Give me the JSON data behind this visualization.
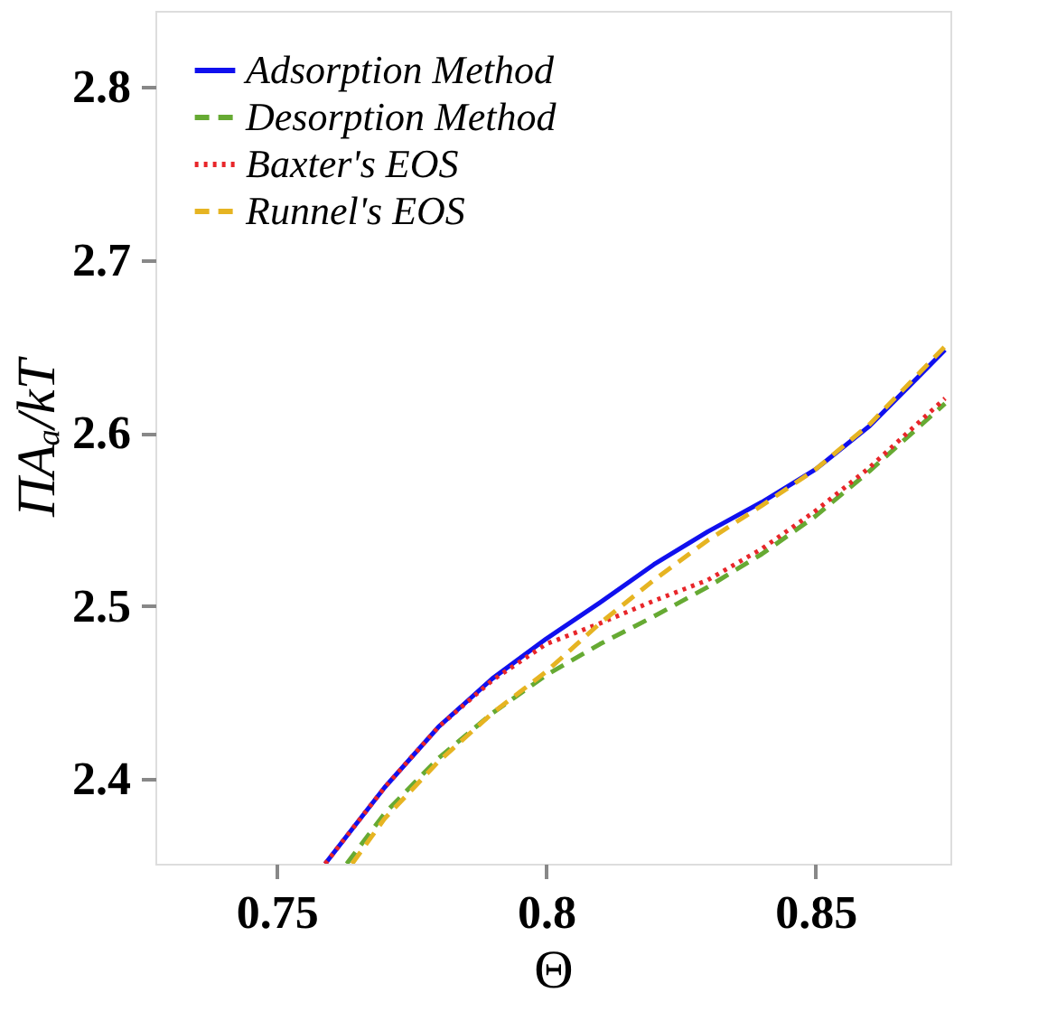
{
  "chart_data": {
    "type": "line",
    "xlabel": "Θ",
    "ylabel": "ΠAₐ/kT",
    "xlim": [
      0.7275,
      0.875
    ],
    "ylim": [
      2.351,
      2.844
    ],
    "xticks": [
      0.75,
      0.8,
      0.85
    ],
    "yticks": [
      2.4,
      2.5,
      2.6,
      2.7,
      2.8
    ],
    "legend": "top left",
    "grid": false,
    "series": [
      {
        "name": "Adsorption Method",
        "color": "#1010ee",
        "line_style": "solid",
        "x": [
          0.759,
          0.77,
          0.78,
          0.79,
          0.8,
          0.81,
          0.82,
          0.83,
          0.84,
          0.85,
          0.86,
          0.874
        ],
        "values": [
          2.351,
          2.395,
          2.43,
          2.458,
          2.481,
          2.502,
          2.524,
          2.543,
          2.56,
          2.579,
          2.604,
          2.648
        ]
      },
      {
        "name": "Desorption Method",
        "color": "#66aa33",
        "line_style": "dashed",
        "x": [
          0.763,
          0.77,
          0.78,
          0.79,
          0.8,
          0.81,
          0.82,
          0.83,
          0.84,
          0.85,
          0.86,
          0.874
        ],
        "values": [
          2.351,
          2.38,
          2.412,
          2.438,
          2.46,
          2.478,
          2.494,
          2.511,
          2.53,
          2.552,
          2.578,
          2.617
        ]
      },
      {
        "name": "Baxter's EOS",
        "color": "#e8262a",
        "line_style": "dotted",
        "x": [
          0.759,
          0.77,
          0.78,
          0.79,
          0.8,
          0.81,
          0.82,
          0.83,
          0.84,
          0.85,
          0.86,
          0.874
        ],
        "values": [
          2.351,
          2.395,
          2.43,
          2.457,
          2.478,
          2.49,
          2.503,
          2.515,
          2.533,
          2.555,
          2.58,
          2.62
        ]
      },
      {
        "name": "Runnel's EOS",
        "color": "#e6b422",
        "line_style": "dashed",
        "x": [
          0.764,
          0.77,
          0.78,
          0.79,
          0.8,
          0.81,
          0.82,
          0.83,
          0.84,
          0.85,
          0.86,
          0.874
        ],
        "values": [
          2.351,
          2.377,
          2.41,
          2.438,
          2.462,
          2.49,
          2.515,
          2.538,
          2.558,
          2.579,
          2.605,
          2.65
        ]
      }
    ]
  }
}
